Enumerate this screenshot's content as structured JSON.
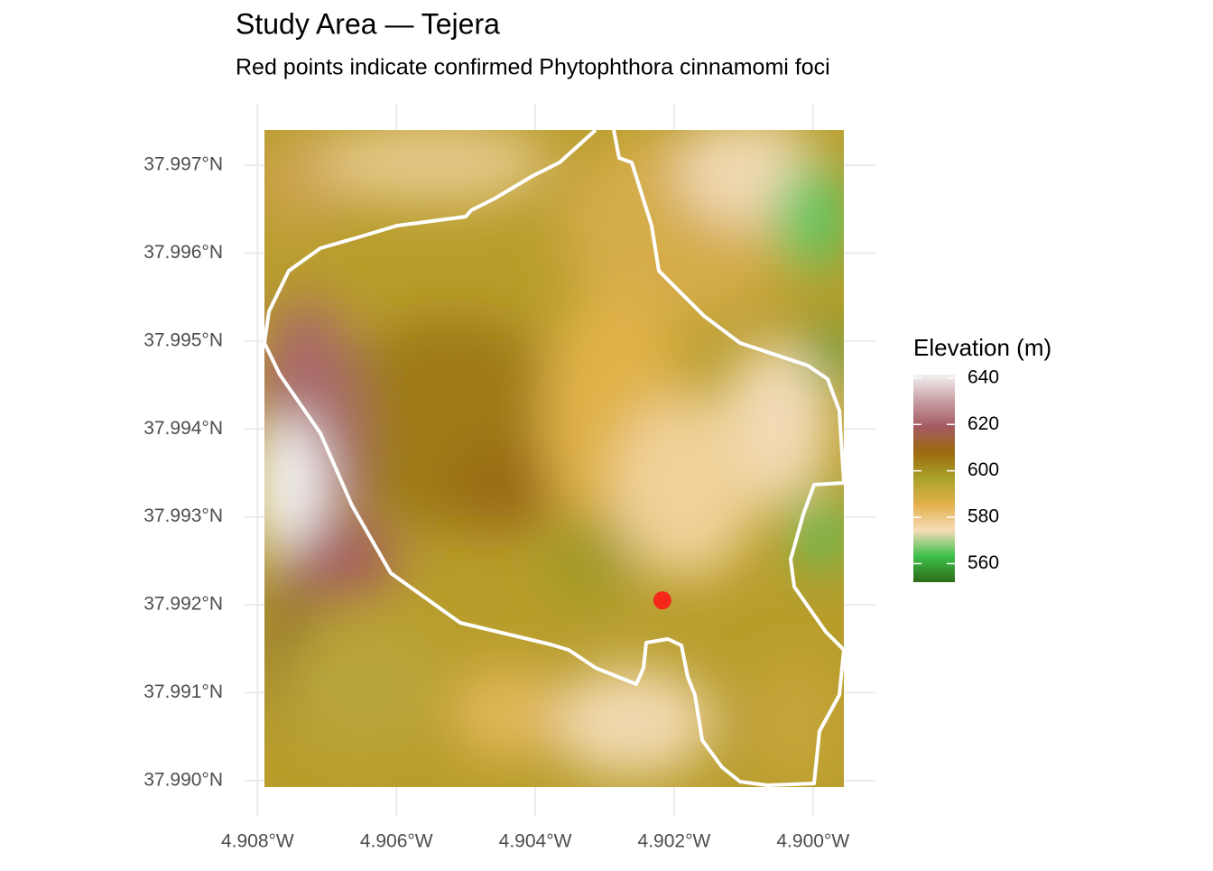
{
  "chart_data": {
    "type": "map",
    "title": "Study Area — Tejera",
    "subtitle": "Red points indicate confirmed Phytophthora cinnamomi foci",
    "xlim": [
      -4.9082,
      -4.8991
    ],
    "ylim": [
      37.9897,
      37.9977
    ],
    "grid": true,
    "xticks": [
      {
        "value": -4.908,
        "label": "4.908°W"
      },
      {
        "value": -4.906,
        "label": "4.906°W"
      },
      {
        "value": -4.904,
        "label": "4.904°W"
      },
      {
        "value": -4.902,
        "label": "4.902°W"
      },
      {
        "value": -4.9,
        "label": "4.900°W"
      }
    ],
    "yticks": [
      {
        "value": 37.997,
        "label": "37.997°N"
      },
      {
        "value": 37.996,
        "label": "37.996°N"
      },
      {
        "value": 37.995,
        "label": "37.995°N"
      },
      {
        "value": 37.994,
        "label": "37.994°N"
      },
      {
        "value": 37.993,
        "label": "37.993°N"
      },
      {
        "value": 37.992,
        "label": "37.992°N"
      },
      {
        "value": 37.991,
        "label": "37.991°N"
      },
      {
        "value": 37.99,
        "label": "37.990°N"
      }
    ],
    "points": {
      "x": [
        -4.90217
      ],
      "y": [
        37.99205
      ],
      "color": "#f5281a"
    },
    "legend": {
      "title": "Elevation (m)",
      "lim": [
        552,
        641.5
      ],
      "ticks": [
        560,
        580,
        600,
        620,
        640
      ],
      "colors": [
        "#2e6b1a",
        "#3cc14a",
        "#f6dcb8",
        "#e3b04a",
        "#a9a22a",
        "#9b6a0e",
        "#a45a62",
        "#c9a0a4",
        "#f2f2f2"
      ]
    }
  }
}
